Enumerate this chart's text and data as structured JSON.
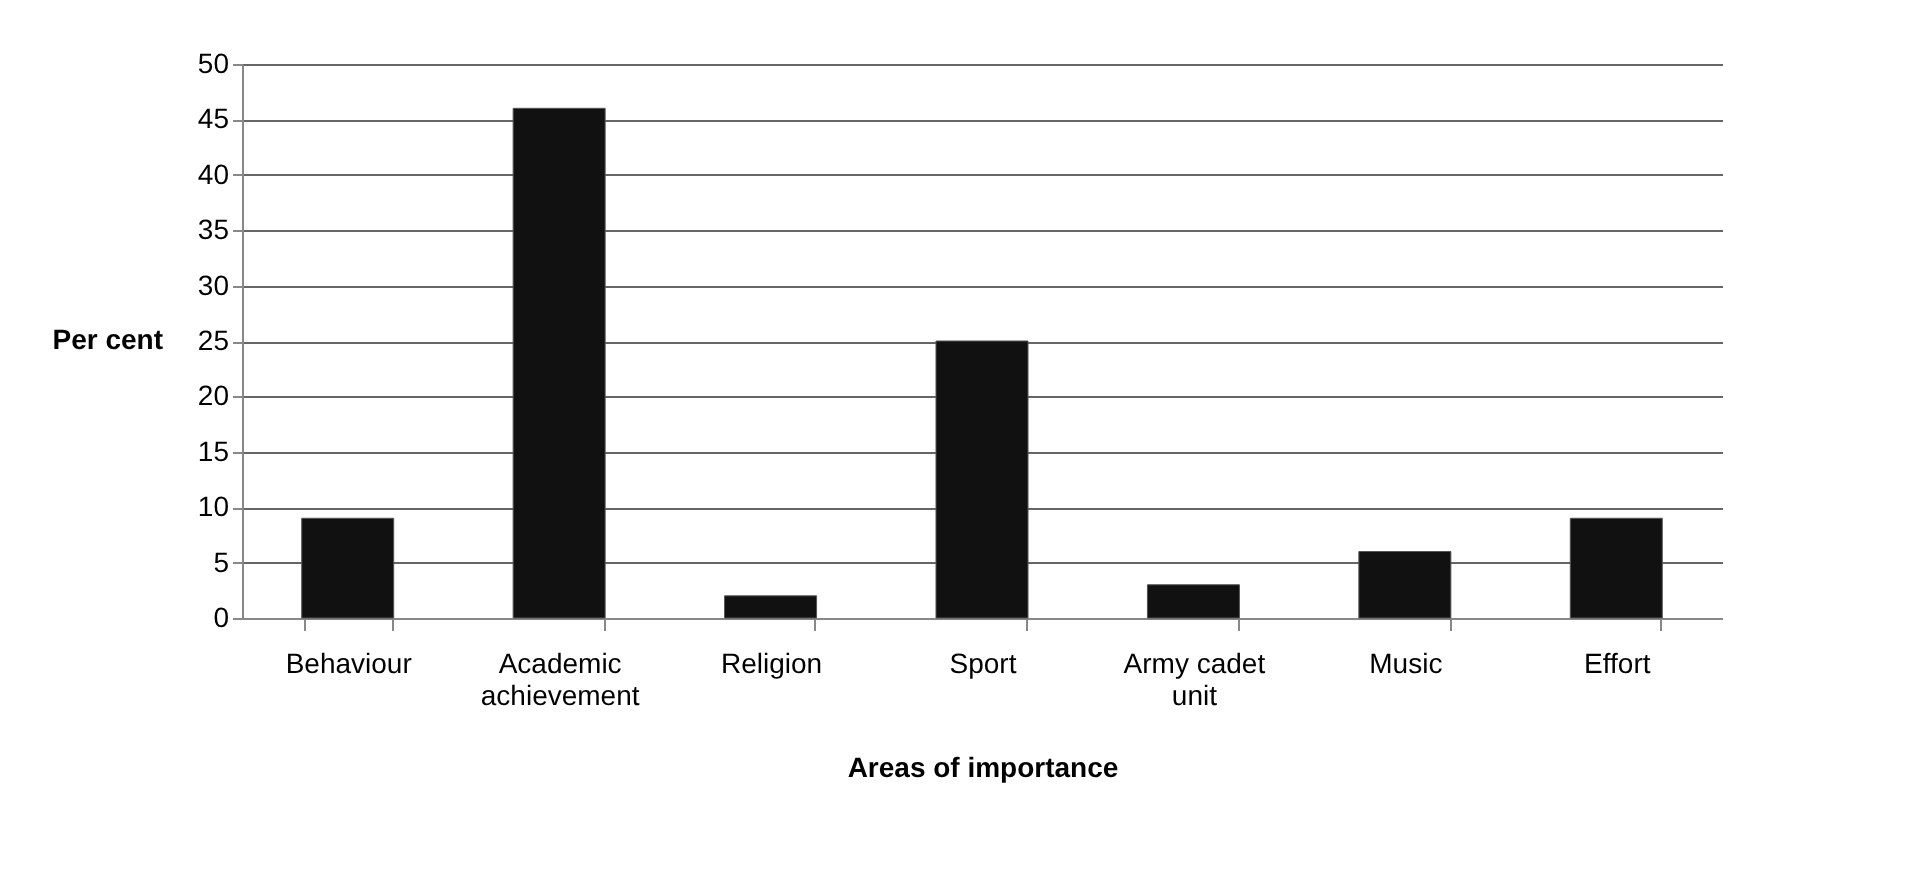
{
  "chart_data": {
    "type": "bar",
    "xlabel": "Areas of importance",
    "ylabel": "Per cent",
    "categories": [
      "Behaviour",
      "Academic achievement",
      "Religion",
      "Sport",
      "Army cadet unit",
      "Music",
      "Effort"
    ],
    "values": [
      9,
      46,
      2,
      25,
      3,
      6,
      9
    ],
    "color": "#111111",
    "ylim": [
      0,
      50
    ],
    "yticks": [
      0,
      5,
      10,
      15,
      20,
      25,
      30,
      35,
      40,
      45,
      50
    ],
    "grid": "y"
  }
}
